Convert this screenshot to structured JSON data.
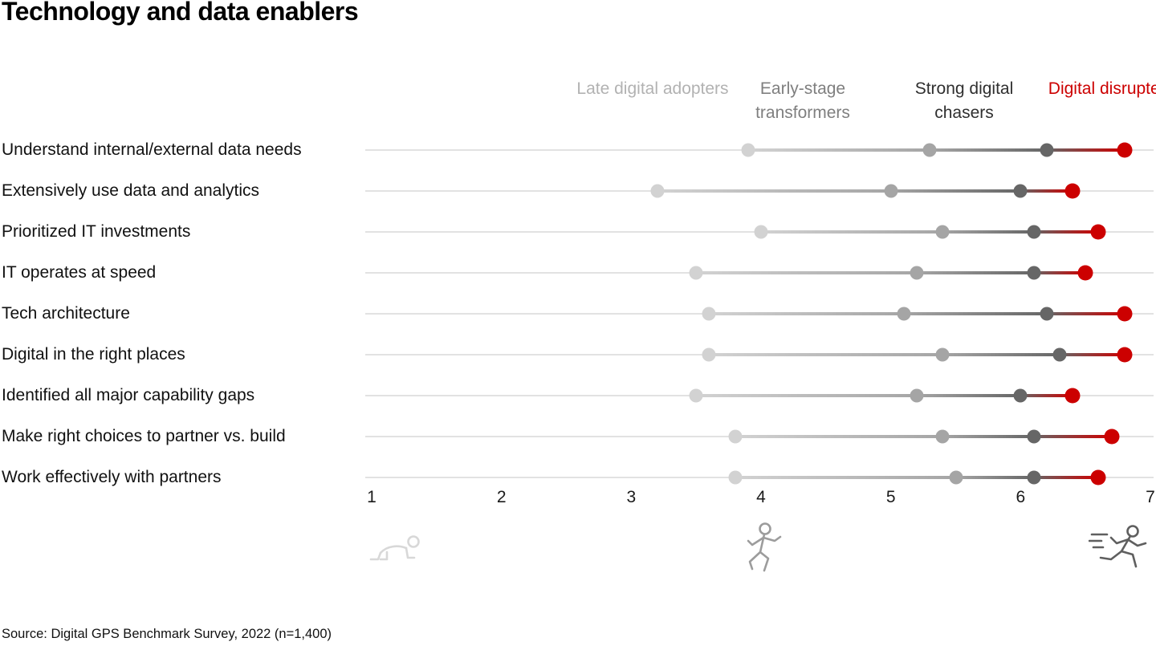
{
  "title": "Technology and data enablers",
  "source": "Source: Digital GPS Benchmark Survey, 2022 (n=1,400)",
  "icons": [
    "crawl-icon",
    "walk-icon",
    "sprint-icon"
  ],
  "colors": {
    "late_dot": "#d2d2d2",
    "early_dot": "#a5a5a5",
    "strong_dot": "#666666",
    "disrupter_dot": "#cc0000",
    "axis_line": "#e2e2e2"
  },
  "chart_data": {
    "type": "scatter",
    "subtype": "dumbbell-dot-plot",
    "title": "Technology and data enablers",
    "xlabel": "",
    "ylabel": "",
    "xlim": [
      1,
      7
    ],
    "x_ticks": [
      1,
      2,
      3,
      4,
      5,
      6,
      7
    ],
    "grid": false,
    "legend_position": "top",
    "groups": [
      {
        "name": "Late digital adopters",
        "color": "#d2d2d2",
        "label_color": "#b2b2b2"
      },
      {
        "name": "Early-stage transformers",
        "color": "#a5a5a5",
        "label_color": "#7f7f7f"
      },
      {
        "name": "Strong digital chasers",
        "color": "#666666",
        "label_color": "#2f2f2f"
      },
      {
        "name": "Digital disrupters",
        "color": "#cc0000",
        "label_color": "#cc0000"
      }
    ],
    "rows": [
      {
        "label": "Understand internal/external data needs",
        "values": [
          3.9,
          5.3,
          6.2,
          6.8
        ]
      },
      {
        "label": "Extensively use data and analytics",
        "values": [
          3.2,
          5.0,
          6.0,
          6.4
        ]
      },
      {
        "label": "Prioritized IT investments",
        "values": [
          4.0,
          5.4,
          6.1,
          6.6
        ]
      },
      {
        "label": "IT operates at speed",
        "values": [
          3.5,
          5.2,
          6.1,
          6.5
        ]
      },
      {
        "label": "Tech architecture",
        "values": [
          3.6,
          5.1,
          6.2,
          6.8
        ]
      },
      {
        "label": "Digital in the right places",
        "values": [
          3.6,
          5.4,
          6.3,
          6.8
        ]
      },
      {
        "label": "Identified all major capability gaps",
        "values": [
          3.5,
          5.2,
          6.0,
          6.4
        ]
      },
      {
        "label": "Make right choices to partner vs. build",
        "values": [
          3.8,
          5.4,
          6.1,
          6.7
        ]
      },
      {
        "label": "Work effectively with partners",
        "values": [
          3.8,
          5.5,
          6.1,
          6.6
        ]
      }
    ]
  }
}
